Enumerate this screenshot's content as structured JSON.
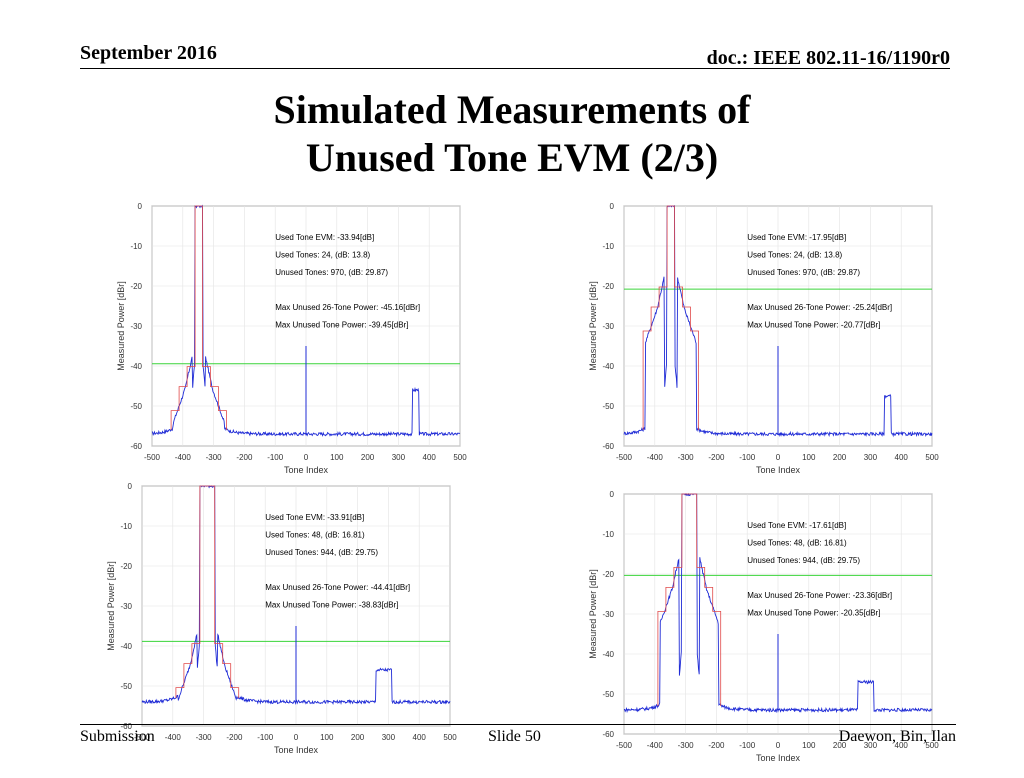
{
  "header": {
    "date": "September 2016",
    "doc": "doc.: IEEE 802.11-16/1190r0"
  },
  "slide": {
    "title_line1": "Simulated Measurements of",
    "title_line2": "Unused Tone EVM (2/3)"
  },
  "footer": {
    "left": "Submission",
    "center": "Slide 50",
    "right": "Daewon, Bin, Ilan"
  },
  "colors": {
    "spectrum": "#1f2bd6",
    "mask": "#e04a4a",
    "threshold": "#3ad43a",
    "grid": "#e3e3e3"
  },
  "chart_data": [
    {
      "type": "line",
      "xlabel": "Tone Index",
      "ylabel": "Measured Power [dBr]",
      "xlim": [
        -500,
        500
      ],
      "ylim": [
        -60,
        0
      ],
      "xticks": [
        -500,
        -400,
        -300,
        -200,
        -100,
        0,
        100,
        200,
        300,
        400,
        500
      ],
      "yticks": [
        0,
        -10,
        -20,
        -30,
        -40,
        -50,
        -60
      ],
      "grid": true,
      "threshold": -39.45,
      "annotations": [
        "Used Tone EVM: -33.94[dB]",
        "Used Tones: 24, (dB: 13.8)",
        "Unused Tones: 970, (dB: 29.87)",
        "",
        "Max Unused 26-Tone Power: -45.16[dBr]",
        "Max Unused Tone Power: -39.45[dBr]"
      ],
      "used": {
        "from": -360,
        "to": -336
      },
      "skirt_base": -45.16,
      "floor": -57,
      "spikes": [
        {
          "x": 0,
          "top": -35
        }
      ],
      "blocks": [
        {
          "from": 346,
          "to": 366,
          "top": -46
        }
      ]
    },
    {
      "type": "line",
      "xlabel": "Tone Index",
      "ylabel": "Measured Power [dBr]",
      "xlim": [
        -500,
        500
      ],
      "ylim": [
        -60,
        0
      ],
      "xticks": [
        -500,
        -400,
        -300,
        -200,
        -100,
        0,
        100,
        200,
        300,
        400,
        500
      ],
      "yticks": [
        0,
        -10,
        -20,
        -30,
        -40,
        -50,
        -60
      ],
      "grid": true,
      "threshold": -20.77,
      "annotations": [
        "Used Tone EVM: -17.95[dB]",
        "Used Tones: 24, (dB: 13.8)",
        "Unused Tones: 970, (dB: 29.87)",
        "",
        "Max Unused 26-Tone Power: -25.24[dBr]",
        "Max Unused Tone Power: -20.77[dBr]"
      ],
      "used": {
        "from": -360,
        "to": -336
      },
      "skirt_base": -25.24,
      "floor": -57,
      "spikes": [
        {
          "x": 0,
          "top": -35
        }
      ],
      "blocks": [
        {
          "from": 346,
          "to": 366,
          "top": -47.5
        }
      ]
    },
    {
      "type": "line",
      "xlabel": "Tone Index",
      "ylabel": "Measured Power [dBr]",
      "xlim": [
        -500,
        500
      ],
      "ylim": [
        -60,
        0
      ],
      "xticks": [
        -500,
        -400,
        -300,
        -200,
        -100,
        0,
        100,
        200,
        300,
        400,
        500
      ],
      "yticks": [
        0,
        -10,
        -20,
        -30,
        -40,
        -50,
        -60
      ],
      "grid": true,
      "threshold": -38.83,
      "annotations": [
        "Used Tone EVM: -33.91[dB]",
        "Used Tones: 48, (dB: 16.81)",
        "Unused Tones: 944, (dB: 29.75)",
        "",
        "Max Unused 26-Tone Power: -44.41[dBr]",
        "Max Unused Tone Power: -38.83[dBr]"
      ],
      "used": {
        "from": -312,
        "to": -264
      },
      "skirt_base": -44.41,
      "floor": -54,
      "spikes": [
        {
          "x": 0,
          "top": -35
        }
      ],
      "blocks": [
        {
          "from": 260,
          "to": 310,
          "top": -46
        }
      ]
    },
    {
      "type": "line",
      "xlabel": "Tone Index",
      "ylabel": "Measured Power [dBr]",
      "xlim": [
        -500,
        500
      ],
      "ylim": [
        -60,
        0
      ],
      "xticks": [
        -500,
        -400,
        -300,
        -200,
        -100,
        0,
        100,
        200,
        300,
        400,
        500
      ],
      "yticks": [
        0,
        -10,
        -20,
        -30,
        -40,
        -50,
        -60
      ],
      "grid": true,
      "threshold": -20.35,
      "annotations": [
        "Used Tone EVM: -17.61[dB]",
        "Used Tones: 48, (dB: 16.81)",
        "Unused Tones: 944, (dB: 29.75)",
        "",
        "Max Unused 26-Tone Power: -23.36[dBr]",
        "Max Unused Tone Power: -20.35[dBr]"
      ],
      "used": {
        "from": -312,
        "to": -264
      },
      "skirt_base": -23.36,
      "floor": -54,
      "spikes": [
        {
          "x": 0,
          "top": -35
        }
      ],
      "blocks": [
        {
          "from": 260,
          "to": 310,
          "top": -47
        }
      ]
    }
  ]
}
